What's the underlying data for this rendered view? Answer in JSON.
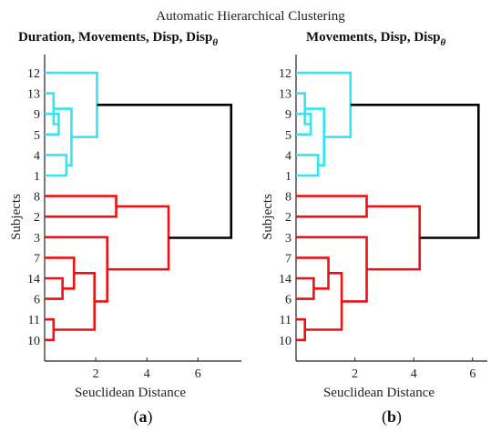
{
  "figure": {
    "suptitle": "Automatic Hierarchical Clustering",
    "colors": {
      "cluster_a": "#33e5f0",
      "cluster_b": "#ee1111",
      "link_above_threshold": "#000000",
      "axis": "#222222"
    }
  },
  "chart_data": [
    {
      "type": "dendrogram",
      "panel_label": {
        "open": "(",
        "letter": "a",
        "close": ")"
      },
      "title_main": "Duration, Movements, Disp, Disp",
      "title_sub": "θ",
      "xlabel": "Seuclidean Distance",
      "ylabel": "Subjects",
      "xlim": [
        0,
        7.7
      ],
      "xticks": [
        2,
        4,
        6
      ],
      "xtick_labels": [
        "2",
        "4",
        "6"
      ],
      "grid": false,
      "leaves": [
        "12",
        "13",
        "9",
        "5",
        "4",
        "1",
        "8",
        "2",
        "3",
        "7",
        "14",
        "6",
        "11",
        "10"
      ],
      "merges": [
        {
          "a": "9",
          "b": "5",
          "height": 0.55,
          "color": "cluster_a"
        },
        {
          "a": "13",
          "b": "9+5",
          "height": 0.35,
          "color": "cluster_a"
        },
        {
          "a": "4",
          "b": "1",
          "height": 0.85,
          "color": "cluster_a"
        },
        {
          "a": "13+9+5",
          "b": "4+1",
          "height": 1.05,
          "color": "cluster_a"
        },
        {
          "a": "12",
          "b": "13+9+5+4+1",
          "height": 2.05,
          "color": "cluster_a"
        },
        {
          "a": "8",
          "b": "2",
          "height": 2.8,
          "color": "cluster_b"
        },
        {
          "a": "14",
          "b": "6",
          "height": 0.7,
          "color": "cluster_b"
        },
        {
          "a": "7",
          "b": "14+6",
          "height": 1.15,
          "color": "cluster_b"
        },
        {
          "a": "11",
          "b": "10",
          "height": 0.35,
          "color": "cluster_b"
        },
        {
          "a": "7+14+6",
          "b": "11+10",
          "height": 1.95,
          "color": "cluster_b"
        },
        {
          "a": "3",
          "b": "7+14+6+11+10",
          "height": 2.45,
          "color": "cluster_b"
        },
        {
          "a": "8+2",
          "b": "3+7+14+6+11+10",
          "height": 4.85,
          "color": "cluster_b"
        },
        {
          "a": "cyan group",
          "b": "red group",
          "height": 7.3,
          "color": "link_above_threshold"
        }
      ]
    },
    {
      "type": "dendrogram",
      "panel_label": {
        "open": "(",
        "letter": "b",
        "close": ")"
      },
      "title_main": "Movements, Disp, Disp",
      "title_sub": "θ",
      "xlabel": "Seuclidean Distance",
      "ylabel": "Subjects",
      "xlim": [
        0,
        6.5
      ],
      "xticks": [
        2,
        4,
        6
      ],
      "xtick_labels": [
        "2",
        "4",
        "6"
      ],
      "grid": false,
      "leaves": [
        "12",
        "13",
        "9",
        "5",
        "4",
        "1",
        "8",
        "2",
        "3",
        "7",
        "14",
        "6",
        "11",
        "10"
      ],
      "merges": [
        {
          "a": "9",
          "b": "5",
          "height": 0.5,
          "color": "cluster_a"
        },
        {
          "a": "13",
          "b": "9+5",
          "height": 0.3,
          "color": "cluster_a"
        },
        {
          "a": "4",
          "b": "1",
          "height": 0.75,
          "color": "cluster_a"
        },
        {
          "a": "13+9+5",
          "b": "4+1",
          "height": 0.95,
          "color": "cluster_a"
        },
        {
          "a": "12",
          "b": "13+9+5+4+1",
          "height": 1.85,
          "color": "cluster_a"
        },
        {
          "a": "8",
          "b": "2",
          "height": 2.4,
          "color": "cluster_b"
        },
        {
          "a": "14",
          "b": "6",
          "height": 0.6,
          "color": "cluster_b"
        },
        {
          "a": "7",
          "b": "14+6",
          "height": 1.1,
          "color": "cluster_b"
        },
        {
          "a": "11",
          "b": "10",
          "height": 0.3,
          "color": "cluster_b"
        },
        {
          "a": "7+14+6",
          "b": "11+10",
          "height": 1.55,
          "color": "cluster_b"
        },
        {
          "a": "3",
          "b": "7+14+6+11+10",
          "height": 2.4,
          "color": "cluster_b"
        },
        {
          "a": "8+2",
          "b": "3+7+14+6+11+10",
          "height": 4.2,
          "color": "cluster_b"
        },
        {
          "a": "cyan group",
          "b": "red group",
          "height": 6.2,
          "color": "link_above_threshold"
        }
      ]
    }
  ]
}
